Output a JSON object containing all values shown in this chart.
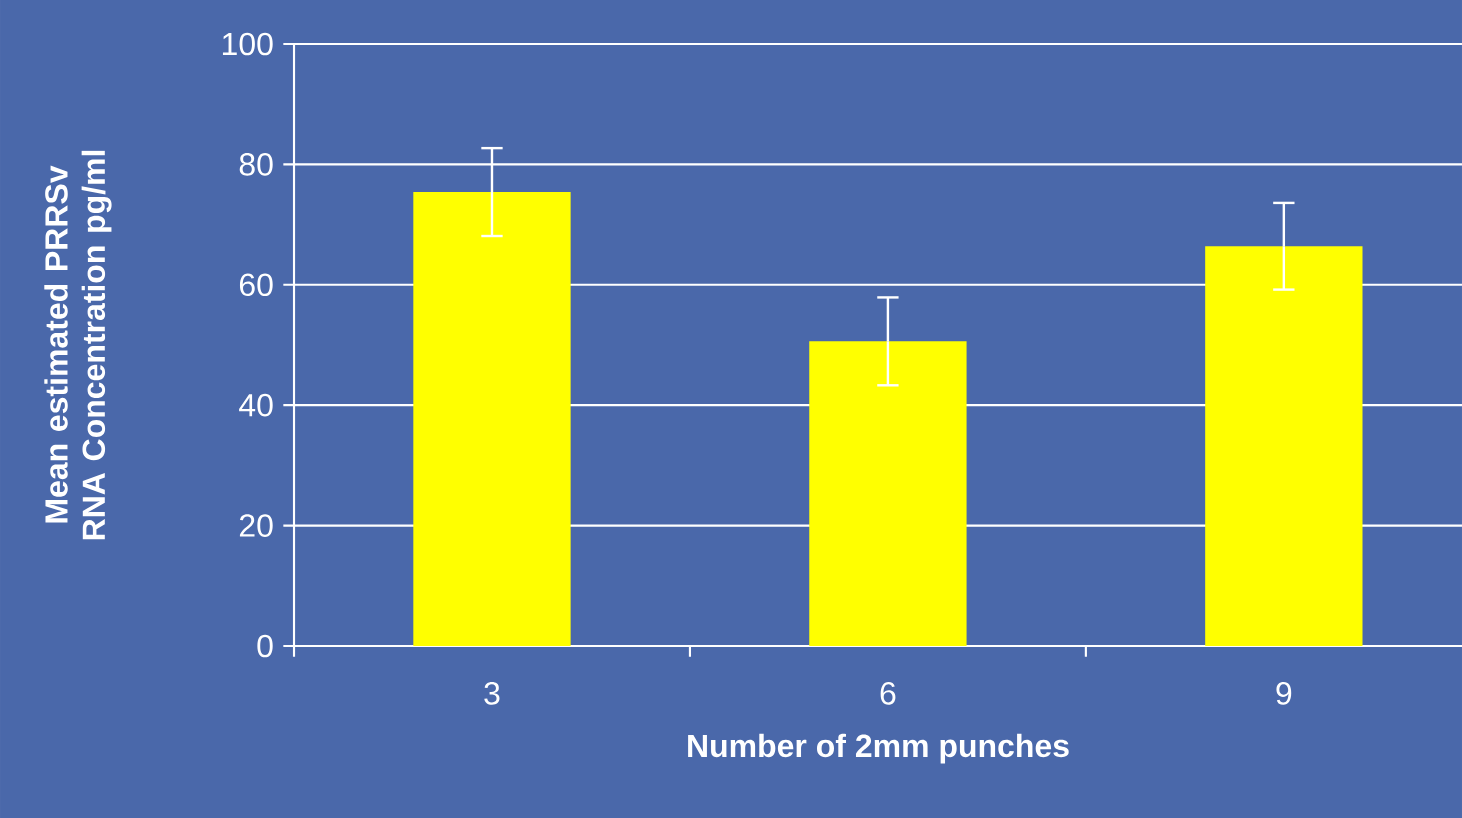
{
  "chart_data": {
    "type": "bar",
    "xlabel": "Number of 2mm punches",
    "ylabel": "Mean estimated PRRSv RNA Concentration pg/ml",
    "categories": [
      "3",
      "6",
      "9"
    ],
    "values": [
      75.4,
      50.6,
      66.4
    ],
    "errors": [
      7.3,
      7.3,
      7.2
    ],
    "color": "#ffff00",
    "ylim": [
      0,
      100
    ],
    "yticks": [
      0,
      20,
      40,
      60,
      80,
      100
    ],
    "grid": "y"
  }
}
